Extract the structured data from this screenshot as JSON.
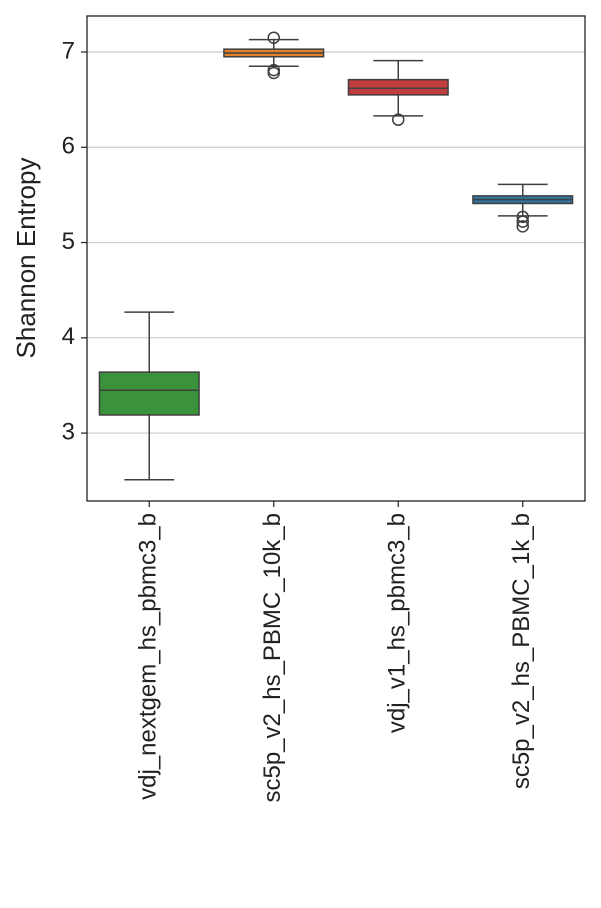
{
  "chart_data": {
    "type": "box",
    "y_label": "Shannon Entropy",
    "categories": [
      "vdj_nextgem_hs_pbmc3_b",
      "sc5p_v2_hs_PBMC_10k_b",
      "vdj_v1_hs_pbmc3_b",
      "sc5p_v2_hs_PBMC_1k_b"
    ],
    "boxes": [
      {
        "color": "#3a923a",
        "whislo": 2.51,
        "q1": 3.19,
        "med": 3.45,
        "q3": 3.64,
        "whishi": 4.27,
        "fliers": []
      },
      {
        "color": "#e1812c",
        "whislo": 6.85,
        "q1": 6.95,
        "med": 6.99,
        "q3": 7.03,
        "whishi": 7.13,
        "fliers": [
          7.15,
          6.81,
          6.78
        ]
      },
      {
        "color": "#c03d3e",
        "whislo": 6.33,
        "q1": 6.55,
        "med": 6.62,
        "q3": 6.71,
        "whishi": 6.91,
        "fliers": [
          6.29
        ]
      },
      {
        "color": "#3274a1",
        "whislo": 5.28,
        "q1": 5.41,
        "med": 5.45,
        "q3": 5.49,
        "whishi": 5.61,
        "fliers": [
          5.27,
          5.22,
          5.17
        ]
      }
    ],
    "ylim": [
      2.287,
      7.378
    ],
    "yticks": [
      3,
      4,
      5,
      6,
      7
    ],
    "grid": true
  }
}
